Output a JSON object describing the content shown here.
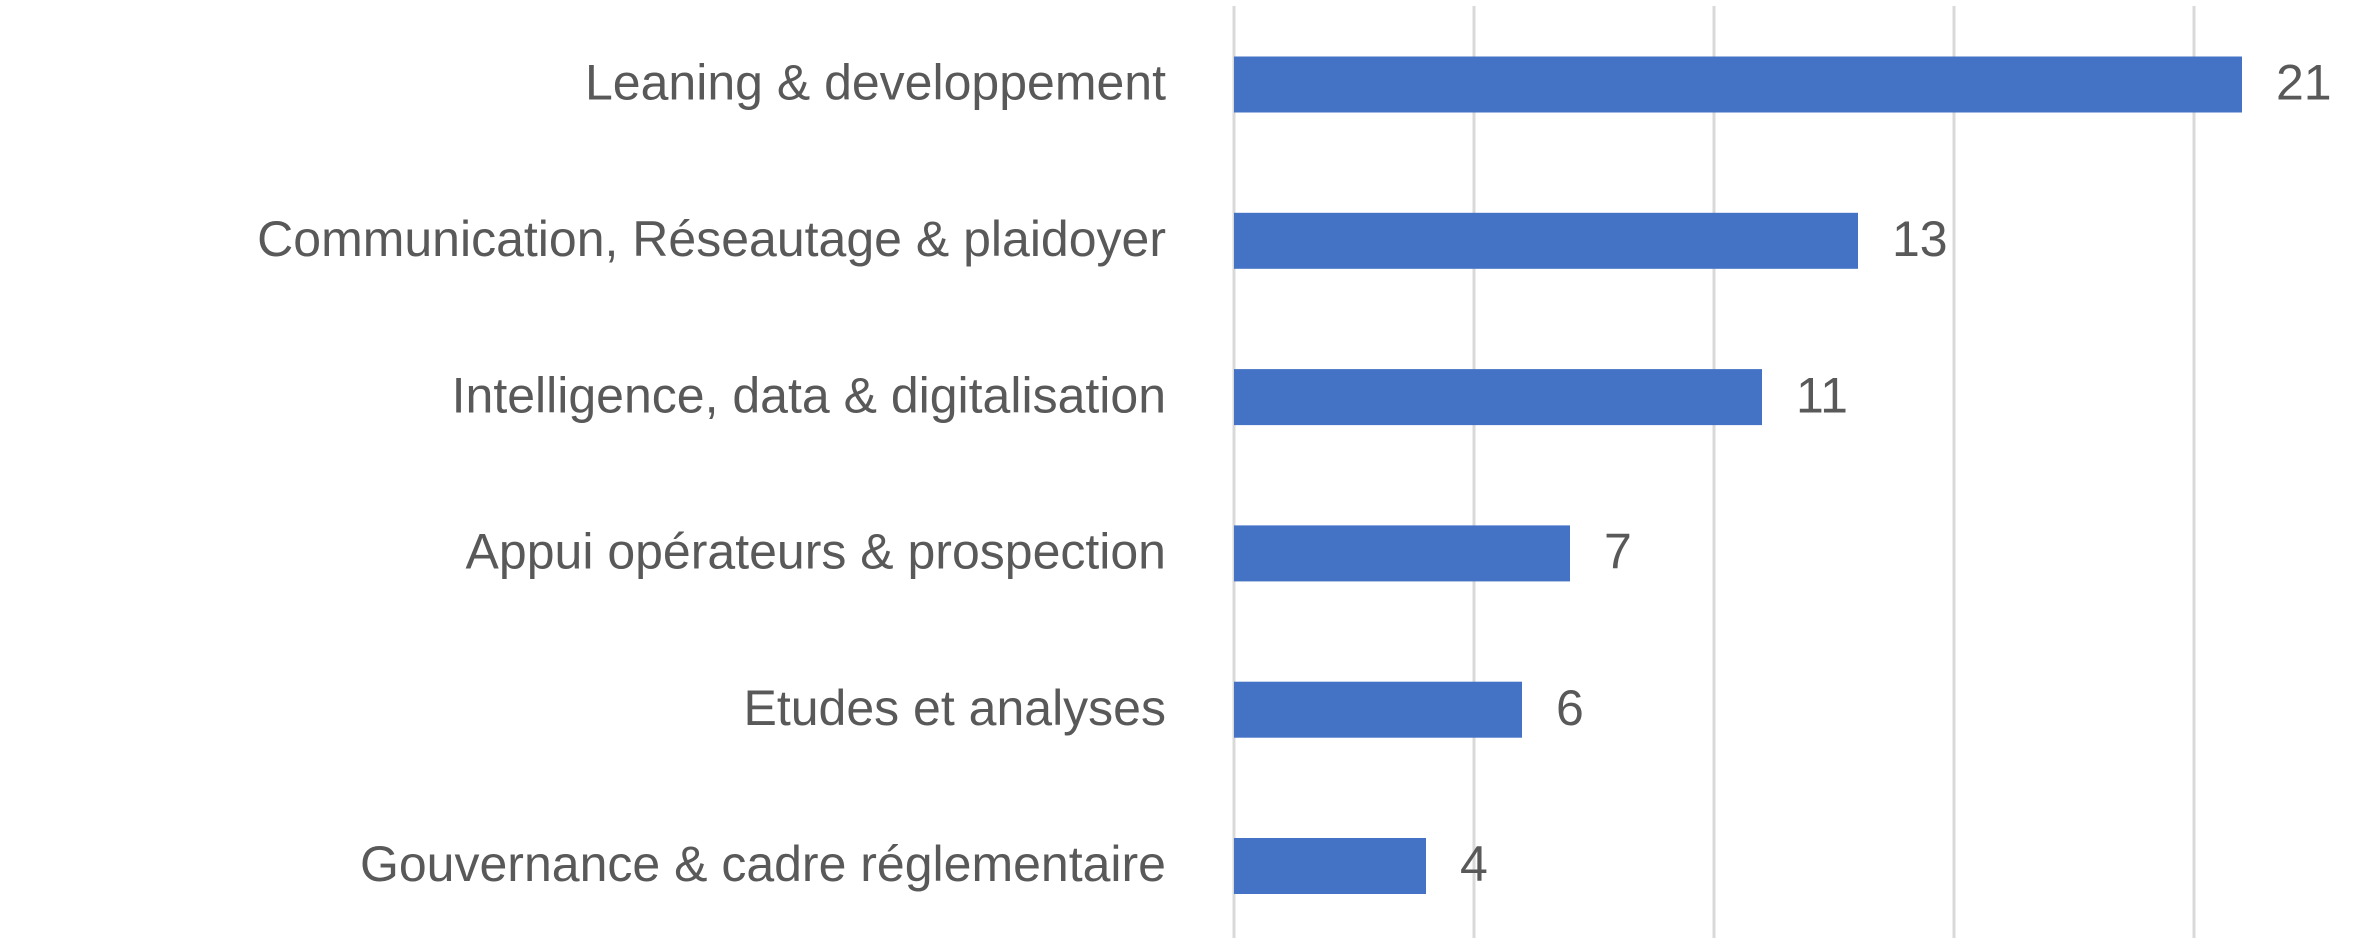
{
  "chart_data": {
    "type": "bar",
    "orientation": "horizontal",
    "categories": [
      "Leaning & developpement",
      "Communication, Réseautage & plaidoyer",
      "Intelligence, data & digitalisation",
      "Appui opérateurs & prospection",
      "Etudes et analyses",
      "Gouvernance & cadre réglementaire"
    ],
    "values": [
      21,
      13,
      11,
      7,
      6,
      4
    ],
    "color": "#4472c4",
    "xlim": [
      0,
      23
    ],
    "xticks": [
      0,
      5,
      10,
      15,
      20
    ],
    "grid": true
  }
}
